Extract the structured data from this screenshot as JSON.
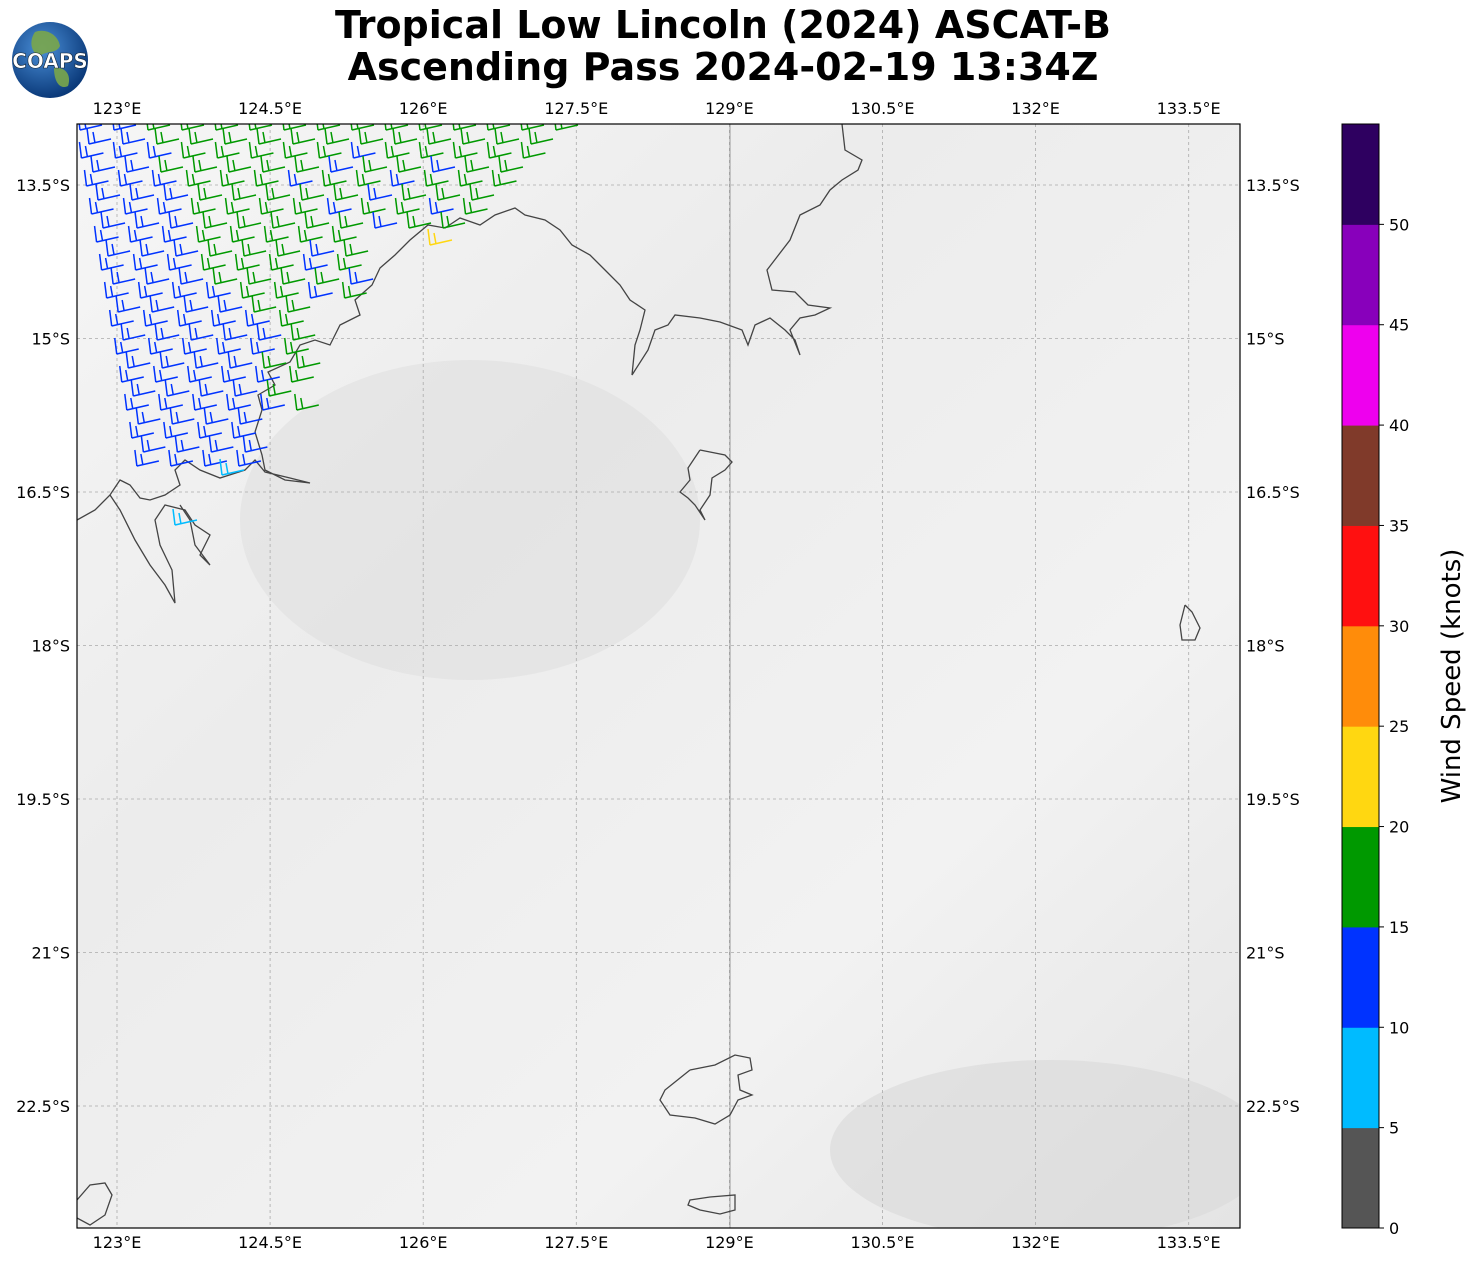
{
  "title_line1": "Tropical Low Lincoln (2024) ASCAT-B",
  "title_line2": "Ascending Pass 2024-02-19 13:34Z",
  "logo_text": "COAPS",
  "lon_ticks": [
    "123°E",
    "124.5°E",
    "126°E",
    "127.5°E",
    "129°E",
    "130.5°E",
    "132°E",
    "133.5°E"
  ],
  "lat_ticks": [
    "13.5°S",
    "15°S",
    "16.5°S",
    "18°S",
    "19.5°S",
    "21°S",
    "22.5°S"
  ],
  "colorbar": {
    "label": "Wind Speed (knots)",
    "ticks": [
      "0",
      "5",
      "10",
      "15",
      "20",
      "25",
      "30",
      "35",
      "40",
      "45",
      "50"
    ],
    "colors": [
      "#555555",
      "#00bbff",
      "#0033ff",
      "#009900",
      "#ffd711",
      "#ff8c0a",
      "#ff1010",
      "#803a2a",
      "#ee00ee",
      "#8800bb",
      "#2e0060"
    ]
  },
  "wind_barb_colors": {
    "5-10": "#00bbff",
    "10-15": "#0033ff",
    "15-20": "#009900",
    "20-25": "#ffd711"
  }
}
